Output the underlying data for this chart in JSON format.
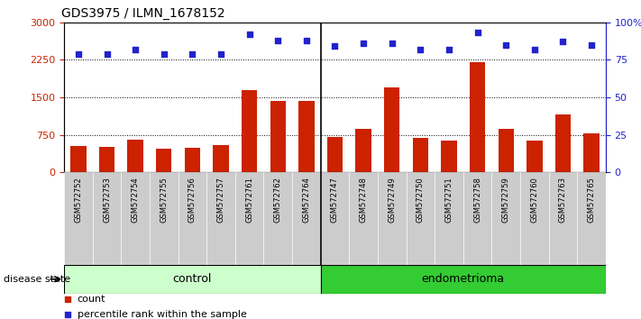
{
  "title": "GDS3975 / ILMN_1678152",
  "samples": [
    "GSM572752",
    "GSM572753",
    "GSM572754",
    "GSM572755",
    "GSM572756",
    "GSM572757",
    "GSM572761",
    "GSM572762",
    "GSM572764",
    "GSM572747",
    "GSM572748",
    "GSM572749",
    "GSM572750",
    "GSM572751",
    "GSM572758",
    "GSM572759",
    "GSM572760",
    "GSM572763",
    "GSM572765"
  ],
  "bar_values": [
    530,
    510,
    660,
    480,
    490,
    550,
    1650,
    1430,
    1420,
    700,
    870,
    1700,
    680,
    640,
    2200,
    870,
    640,
    1150,
    780
  ],
  "pct_values": [
    79,
    79,
    82,
    79,
    79,
    79,
    92,
    88,
    88,
    84,
    86,
    86,
    82,
    82,
    93,
    85,
    82,
    87,
    85
  ],
  "control_count": 9,
  "endometrioma_count": 10,
  "bar_color": "#cc2200",
  "dot_color": "#2222cc",
  "ylim_left": [
    0,
    3000
  ],
  "ylim_right": [
    0,
    100
  ],
  "yticks_left": [
    0,
    750,
    1500,
    2250,
    3000
  ],
  "yticks_right": [
    0,
    25,
    50,
    75,
    100
  ],
  "ytick_labels_left": [
    "0",
    "750",
    "1500",
    "2250",
    "3000"
  ],
  "ytick_labels_right": [
    "0",
    "25",
    "50",
    "75",
    "100%"
  ],
  "background_color": "#ffffff",
  "xtick_bg_color": "#cccccc",
  "legend_count_label": "count",
  "legend_pct_label": "percentile rank within the sample",
  "disease_state_label": "disease state",
  "control_label": "control",
  "endometrioma_label": "endometrioma",
  "control_bg": "#ccffcc",
  "endometrioma_bg": "#33cc33"
}
